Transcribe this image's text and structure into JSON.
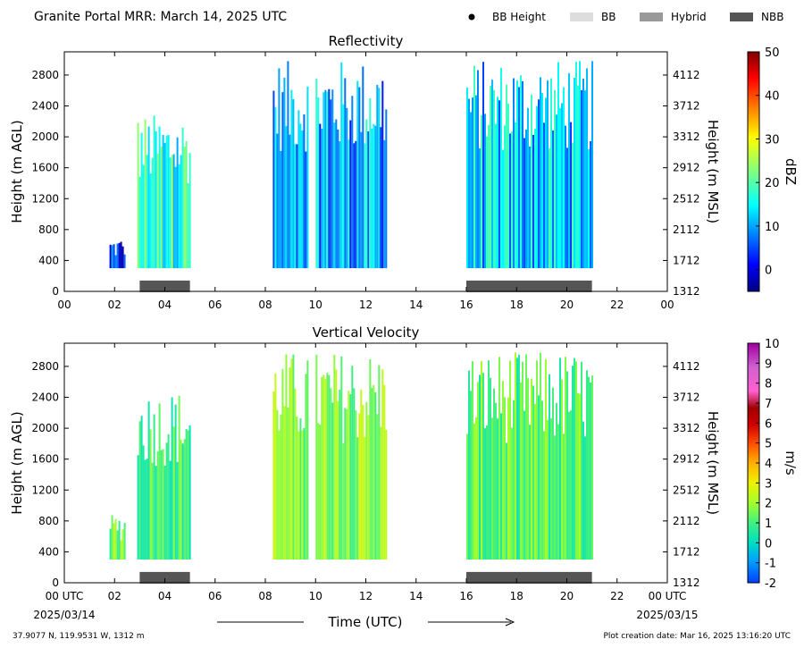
{
  "header": {
    "title": "Granite Portal MRR:  March 14, 2025 UTC",
    "legend": [
      {
        "label": "BB Height",
        "kind": "dot",
        "color": "#000000"
      },
      {
        "label": "BB",
        "kind": "swatch",
        "color": "#dddddd"
      },
      {
        "label": "Hybrid",
        "kind": "swatch",
        "color": "#999999"
      },
      {
        "label": "NBB",
        "kind": "swatch",
        "color": "#555555"
      }
    ]
  },
  "footer": {
    "location": "37.9077 N, 119.9531 W, 1312 m",
    "creation": "Plot creation date: Mar 16, 2025 13:16:20 UTC",
    "xaxis_label": "Time (UTC)",
    "start_date": "2025/03/14",
    "end_date": "2025/03/15"
  },
  "chart_data": [
    {
      "type": "heatmap",
      "title": "Reflectivity",
      "ylabel": "Height (m AGL)",
      "ylabel_right": "Height (m MSL)",
      "xlim": [
        0,
        24
      ],
      "ylim": [
        0,
        3100
      ],
      "yticks": [
        0,
        400,
        800,
        1200,
        1600,
        2000,
        2400,
        2800
      ],
      "yticks_right": [
        "1312",
        "1712",
        "2112",
        "2512",
        "2912",
        "3312",
        "3712",
        "4112"
      ],
      "xticklabels": [
        "00",
        "02",
        "04",
        "06",
        "08",
        "10",
        "12",
        "14",
        "16",
        "18",
        "20",
        "22",
        "00"
      ],
      "colorbar": {
        "label": "dBZ",
        "min": -5,
        "max": 50,
        "ticks": [
          0,
          10,
          20,
          30,
          40,
          50
        ],
        "colormap": "jet"
      },
      "bb_classification": [
        {
          "start": 3.0,
          "end": 5.0,
          "class": "NBB"
        },
        {
          "start": 16.0,
          "end": 21.0,
          "class": "NBB"
        }
      ],
      "echo_periods": [
        {
          "start": 1.8,
          "end": 2.4,
          "top": 700,
          "value_dbz": 2
        },
        {
          "start": 2.9,
          "end": 5.0,
          "top": 2300,
          "value_dbz": 18
        },
        {
          "start": 8.3,
          "end": 9.7,
          "top": 3000,
          "value_dbz": 8
        },
        {
          "start": 10.0,
          "end": 12.8,
          "top": 3000,
          "value_dbz": 10
        },
        {
          "start": 16.0,
          "end": 21.0,
          "top": 3000,
          "value_dbz": 12
        }
      ]
    },
    {
      "type": "heatmap",
      "title": "Vertical Velocity",
      "ylabel": "Height (m AGL)",
      "ylabel_right": "Height (m MSL)",
      "xlim": [
        0,
        24
      ],
      "ylim": [
        0,
        3100
      ],
      "yticks": [
        0,
        400,
        800,
        1200,
        1600,
        2000,
        2400,
        2800
      ],
      "yticks_right": [
        "1312",
        "1712",
        "2112",
        "2512",
        "2912",
        "3312",
        "3712",
        "4112"
      ],
      "xticklabels": [
        "00 UTC",
        "02",
        "04",
        "06",
        "08",
        "10",
        "12",
        "14",
        "16",
        "18",
        "20",
        "22",
        "00 UTC"
      ],
      "colorbar": {
        "label": "m/s",
        "min": -2,
        "max": 10,
        "ticks": [
          -2,
          -1,
          0,
          1,
          2,
          3,
          4,
          5,
          6,
          7,
          8,
          9,
          10
        ]
      },
      "bb_classification": [
        {
          "start": 3.0,
          "end": 5.0,
          "class": "NBB"
        },
        {
          "start": 16.0,
          "end": 21.0,
          "class": "NBB"
        }
      ],
      "echo_periods": [
        {
          "start": 1.8,
          "end": 2.4,
          "top": 900,
          "value_ms": 1.5
        },
        {
          "start": 2.9,
          "end": 5.0,
          "top": 2500,
          "value_ms": 1.0
        },
        {
          "start": 8.3,
          "end": 9.7,
          "top": 3000,
          "value_ms": 1.8
        },
        {
          "start": 10.0,
          "end": 12.8,
          "top": 3000,
          "value_ms": 1.8
        },
        {
          "start": 16.0,
          "end": 21.0,
          "top": 3000,
          "value_ms": 1.2
        }
      ]
    }
  ]
}
